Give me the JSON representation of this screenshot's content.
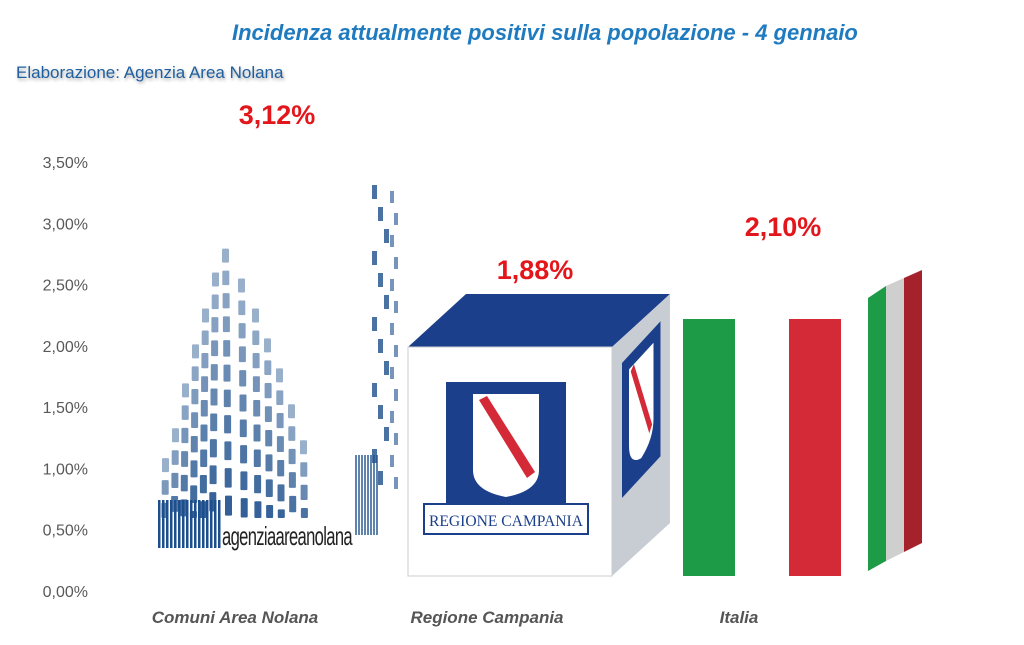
{
  "title": "Incidenza attualmente positivi sulla popolazione - 4 gennaio",
  "credit": "Elaborazione: Agenzia Area Nolana",
  "chart_data": {
    "type": "bar",
    "categories": [
      "Comuni Area Nolana",
      "Regione Campania",
      "Italia"
    ],
    "values": [
      3.12,
      1.88,
      2.1
    ],
    "value_labels": [
      "3,12%",
      "1,88%",
      "2,10%"
    ],
    "ylim": [
      0,
      3.5
    ],
    "yticks": [
      0,
      0.5,
      1.0,
      1.5,
      2.0,
      2.5,
      3.0,
      3.5
    ],
    "ytick_labels": [
      "0,00%",
      "0,50%",
      "1,00%",
      "1,50%",
      "2,00%",
      "2,50%",
      "3,00%",
      "3,50%"
    ],
    "grid": false,
    "colors": {
      "title": "#1f7bbf",
      "value_label": "#e3161b",
      "nolana_blue": "#1d4f8c",
      "campania_blue": "#1b3f8b",
      "italy_green": "#1e9b47",
      "italy_red": "#d42a37"
    },
    "logos": {
      "nolana_text": "agenziaareanolana",
      "campania_text": "REGIONE CAMPANIA"
    }
  }
}
